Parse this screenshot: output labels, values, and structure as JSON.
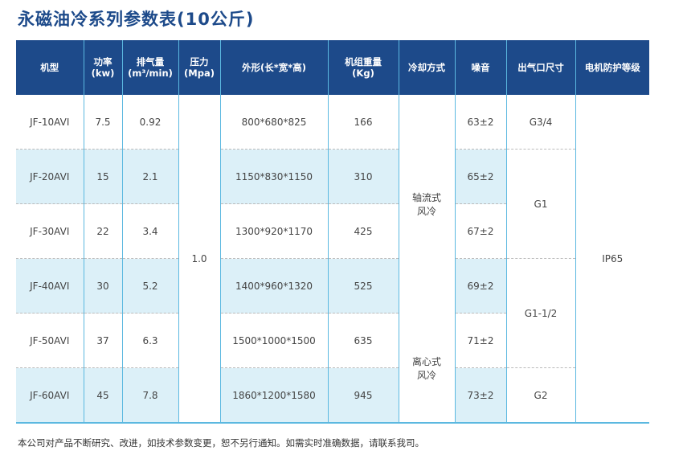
{
  "title": "永磁油冷系列参数表(10公斤)",
  "headers": [
    [
      "机型"
    ],
    [
      "功率",
      "(kw)"
    ],
    [
      "排气量",
      "(m³/min)"
    ],
    [
      "压力",
      "(Mpa)"
    ],
    [
      "外形(长*宽*高)"
    ],
    [
      "机组重量",
      "(Kg)"
    ],
    [
      "冷却方式"
    ],
    [
      "噪音"
    ],
    [
      "出气口尺寸"
    ],
    [
      "电机防护等级"
    ]
  ],
  "pressure": "1.0",
  "cooling": [
    {
      "label": [
        "轴流式",
        "风冷"
      ],
      "rows": 4
    },
    {
      "label": [
        "离心式",
        "风冷"
      ],
      "rows": 2
    }
  ],
  "outlet": [
    {
      "label": "G3/4",
      "rows": 1
    },
    {
      "label": "G1",
      "rows": 2
    },
    {
      "label": "G1-1/2",
      "rows": 2
    },
    {
      "label": "G2",
      "rows": 1
    }
  ],
  "protection": "IP65",
  "rows": [
    {
      "model": "JF-10AVI",
      "power": "7.5",
      "flow": "0.92",
      "size": "800*680*825",
      "weight": "166",
      "noise": "63±2"
    },
    {
      "model": "JF-20AVI",
      "power": "15",
      "flow": "2.1",
      "size": "1150*830*1150",
      "weight": "310",
      "noise": "65±2"
    },
    {
      "model": "JF-30AVI",
      "power": "22",
      "flow": "3.4",
      "size": "1300*920*1170",
      "weight": "425",
      "noise": "67±2"
    },
    {
      "model": "JF-40AVI",
      "power": "30",
      "flow": "5.2",
      "size": "1400*960*1320",
      "weight": "525",
      "noise": "69±2"
    },
    {
      "model": "JF-50AVI",
      "power": "37",
      "flow": "6.3",
      "size": "1500*1000*1500",
      "weight": "635",
      "noise": "71±2"
    },
    {
      "model": "JF-60AVI",
      "power": "45",
      "flow": "7.8",
      "size": "1860*1200*1580",
      "weight": "945",
      "noise": "73±2"
    }
  ],
  "footer": "本公司对产品不断研究、改进，如技术参数变更，恕不另行通知。如需实时准确数据，请联系我司。",
  "colors": {
    "header": "#1d4a8a",
    "shade": "#dcf0f8",
    "line": "#5bb8e0"
  }
}
